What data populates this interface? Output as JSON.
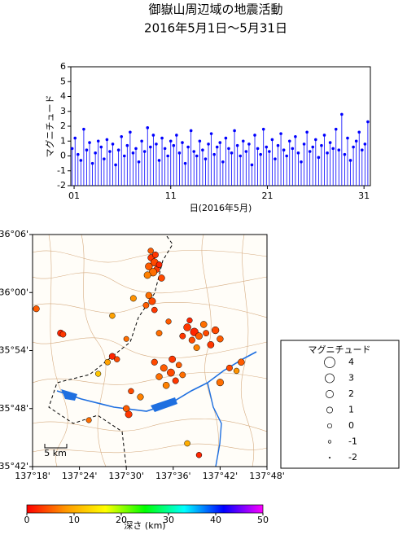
{
  "chart_data": [
    {
      "type": "stem",
      "title": "御嶽山周辺域の地震活動",
      "subtitle": "2016年5月1日～5月31日",
      "ylabel": "マグニチュード",
      "xlabel": "日(2016年5月)",
      "color": "#0000ff",
      "xlim": [
        0.66,
        31.66
      ],
      "xticks": [
        {
          "value": 1,
          "label": "01"
        },
        11,
        21,
        31
      ],
      "ylim": [
        -2,
        6
      ],
      "yticks": [
        -2,
        -1,
        0,
        1,
        2,
        3,
        4,
        5,
        6
      ],
      "x": [
        0.8,
        1.1,
        1.4,
        1.7,
        2.0,
        2.3,
        2.6,
        2.9,
        3.2,
        3.5,
        3.8,
        4.1,
        4.4,
        4.7,
        5.0,
        5.3,
        5.6,
        5.9,
        6.2,
        6.5,
        6.8,
        7.1,
        7.4,
        7.7,
        8.0,
        8.3,
        8.6,
        8.9,
        9.2,
        9.5,
        9.8,
        10.1,
        10.4,
        10.7,
        11.0,
        11.3,
        11.6,
        11.9,
        12.2,
        12.5,
        12.8,
        13.1,
        13.4,
        13.7,
        14.0,
        14.3,
        14.6,
        14.9,
        15.2,
        15.5,
        15.8,
        16.1,
        16.4,
        16.7,
        17.0,
        17.3,
        17.6,
        17.9,
        18.2,
        18.5,
        18.8,
        19.1,
        19.4,
        19.7,
        20.0,
        20.3,
        20.6,
        20.9,
        21.2,
        21.5,
        21.8,
        22.1,
        22.4,
        22.7,
        23.0,
        23.3,
        23.6,
        23.9,
        24.2,
        24.5,
        24.8,
        25.1,
        25.4,
        25.7,
        26.0,
        26.3,
        26.6,
        26.9,
        27.2,
        27.5,
        27.8,
        28.1,
        28.4,
        28.7,
        29.0,
        29.3,
        29.6,
        29.9,
        30.2,
        30.5,
        30.8,
        31.1,
        31.4
      ],
      "values": [
        0.5,
        1.2,
        0.1,
        -0.3,
        1.8,
        0.4,
        0.9,
        -0.5,
        0.2,
        1.0,
        0.6,
        -0.2,
        1.1,
        0.3,
        0.8,
        -0.6,
        0.4,
        1.3,
        0.0,
        0.7,
        1.6,
        0.2,
        0.5,
        -0.4,
        1.0,
        0.3,
        1.9,
        0.6,
        1.4,
        0.8,
        -0.3,
        1.2,
        0.5,
        0.0,
        1.0,
        0.7,
        1.4,
        0.2,
        0.9,
        -0.5,
        0.6,
        1.7,
        0.3,
        0.0,
        1.0,
        0.4,
        -0.2,
        0.8,
        1.5,
        0.1,
        0.6,
        0.9,
        -0.4,
        1.2,
        0.5,
        0.2,
        1.7,
        0.7,
        0.0,
        1.0,
        0.3,
        0.8,
        -0.6,
        1.4,
        0.5,
        0.1,
        1.8,
        0.6,
        0.3,
        1.1,
        -0.2,
        0.7,
        1.5,
        0.4,
        0.0,
        1.0,
        0.5,
        1.3,
        0.2,
        -0.4,
        0.8,
        1.6,
        0.3,
        0.6,
        1.1,
        -0.1,
        0.7,
        1.4,
        0.2,
        0.9,
        0.5,
        1.8,
        0.4,
        2.8,
        0.1,
        1.2,
        -0.3,
        0.6,
        1.0,
        1.6,
        0.4,
        0.8,
        2.3
      ]
    },
    {
      "type": "map",
      "xlim": [
        137.3,
        137.8
      ],
      "xticks": [
        {
          "value": 137.3,
          "label": "137°18'"
        },
        {
          "value": 137.4,
          "label": "137°24'"
        },
        {
          "value": 137.5,
          "label": "137°30'"
        },
        {
          "value": 137.6,
          "label": "137°36'"
        },
        {
          "value": 137.7,
          "label": "137°42'"
        },
        {
          "value": 137.8,
          "label": "137°48'"
        }
      ],
      "ylim": [
        35.7,
        36.1
      ],
      "yticks": [
        {
          "value": 35.7,
          "label": "35°42'"
        },
        {
          "value": 35.8,
          "label": "35°48'"
        },
        {
          "value": 35.9,
          "label": "35°54'"
        },
        {
          "value": 36.0,
          "label": "36°00'"
        },
        {
          "value": 36.1,
          "label": "36°06'"
        }
      ],
      "scale_label": "5 km",
      "colorscale": [
        "#ff0000",
        "#ff9900",
        "#ffff00",
        "#00ff00",
        "#00ffff",
        "#0000ff",
        "#ff00ff"
      ],
      "clim": [
        0,
        50
      ],
      "cticks": [
        0,
        10,
        20,
        30,
        40,
        50
      ],
      "clabel": "深さ (km)",
      "legend_title": "マグニチュード",
      "legend_values": [
        4,
        3,
        2,
        1,
        0,
        -1,
        -2
      ],
      "lon": [
        137.553,
        137.56,
        137.548,
        137.565,
        137.557,
        137.57,
        137.545,
        137.575,
        137.552,
        137.562,
        137.548,
        137.555,
        137.542,
        137.56,
        137.515,
        137.63,
        137.645,
        137.655,
        137.64,
        137.665,
        137.62,
        137.69,
        137.7,
        137.68,
        137.65,
        137.635,
        137.67,
        137.58,
        137.595,
        137.57,
        137.605,
        137.585,
        137.612,
        137.56,
        137.62,
        137.598,
        137.308,
        137.36,
        137.365,
        137.47,
        137.48,
        137.46,
        137.44,
        137.42,
        137.5,
        137.505,
        137.53,
        137.51,
        137.57,
        137.59,
        137.7,
        137.72,
        137.745,
        137.735,
        137.63,
        137.655,
        137.5,
        137.47
      ],
      "lat": [
        36.06,
        36.052,
        36.045,
        36.04,
        36.035,
        36.048,
        36.03,
        36.025,
        36.072,
        36.065,
        35.995,
        35.985,
        35.978,
        35.97,
        35.99,
        35.94,
        35.932,
        35.925,
        35.918,
        35.945,
        35.925,
        35.935,
        35.92,
        35.91,
        35.905,
        35.952,
        35.93,
        35.87,
        35.862,
        35.855,
        35.848,
        35.84,
        35.875,
        35.88,
        35.858,
        35.885,
        35.972,
        35.93,
        35.928,
        35.89,
        35.885,
        35.88,
        35.86,
        35.78,
        35.8,
        35.79,
        35.82,
        35.83,
        35.93,
        35.95,
        35.845,
        35.87,
        35.88,
        35.865,
        35.74,
        35.72,
        35.92,
        35.96
      ],
      "depth": [
        3,
        4,
        5,
        3,
        6,
        2,
        7,
        4,
        5,
        3,
        6,
        4,
        5,
        3,
        8,
        3,
        2,
        5,
        4,
        6,
        3,
        4,
        5,
        3,
        7,
        2,
        4,
        5,
        4,
        6,
        3,
        7,
        5,
        4,
        6,
        3,
        5,
        2,
        3,
        2,
        4,
        9,
        12,
        6,
        5,
        3,
        7,
        4,
        6,
        5,
        6,
        4,
        5,
        8,
        10,
        2,
        6,
        9
      ],
      "magnitude": [
        1.5,
        2.0,
        1.8,
        1.2,
        2.2,
        1.0,
        1.6,
        1.4,
        0.8,
        1.1,
        1.3,
        1.7,
        1.0,
        0.9,
        1.1,
        1.9,
        2.3,
        1.6,
        1.2,
        1.4,
        1.0,
        1.8,
        1.3,
        1.5,
        1.1,
        0.7,
        1.0,
        1.6,
        2.0,
        1.3,
        1.1,
        1.4,
        0.9,
        1.2,
        1.0,
        1.5,
        1.2,
        1.4,
        1.0,
        1.2,
        0.8,
        0.9,
        0.7,
        0.6,
        1.3,
        1.6,
        1.2,
        0.8,
        1.0,
        0.7,
        1.7,
        1.1,
        1.4,
        0.8,
        0.9,
        0.8,
        0.6,
        0.8
      ]
    }
  ]
}
